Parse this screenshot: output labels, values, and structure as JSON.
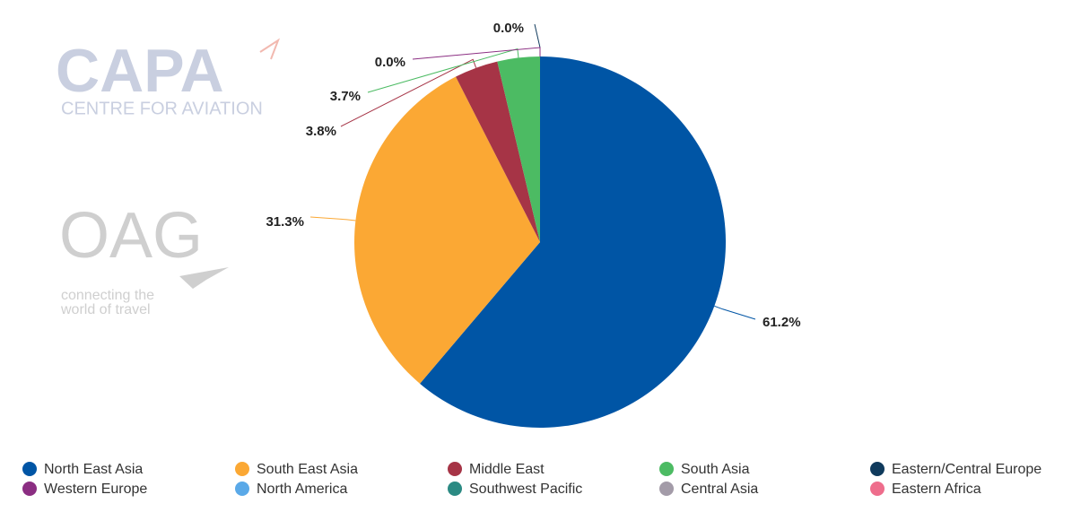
{
  "chart_data": {
    "type": "pie",
    "categories": [
      "North East Asia",
      "South East Asia",
      "Middle East",
      "South Asia",
      "Eastern/Central Europe",
      "Western Europe",
      "North America",
      "Southwest Pacific",
      "Central Asia",
      "Eastern Africa"
    ],
    "values": [
      61.2,
      31.3,
      3.8,
      3.7,
      0.0,
      0.0,
      0,
      0,
      0,
      0
    ],
    "value_labels": [
      "61.2%",
      "31.3%",
      "3.8%",
      "3.7%",
      "0.0%",
      "0.0%",
      null,
      null,
      null,
      null
    ],
    "colors": [
      "#0055a5",
      "#fba834",
      "#a63446",
      "#4cbb63",
      "#0f3a5c",
      "#8b2e82",
      "#5aa9e8",
      "#2b8a83",
      "#a39ba8",
      "#ee6d8c"
    ],
    "legend": "bottom"
  },
  "watermarks": {
    "capa": "CAPA",
    "capa_sub": "CENTRE FOR AVIATION",
    "oag": "OAG",
    "oag_sub_1": "connecting the",
    "oag_sub_2": "world of travel"
  }
}
